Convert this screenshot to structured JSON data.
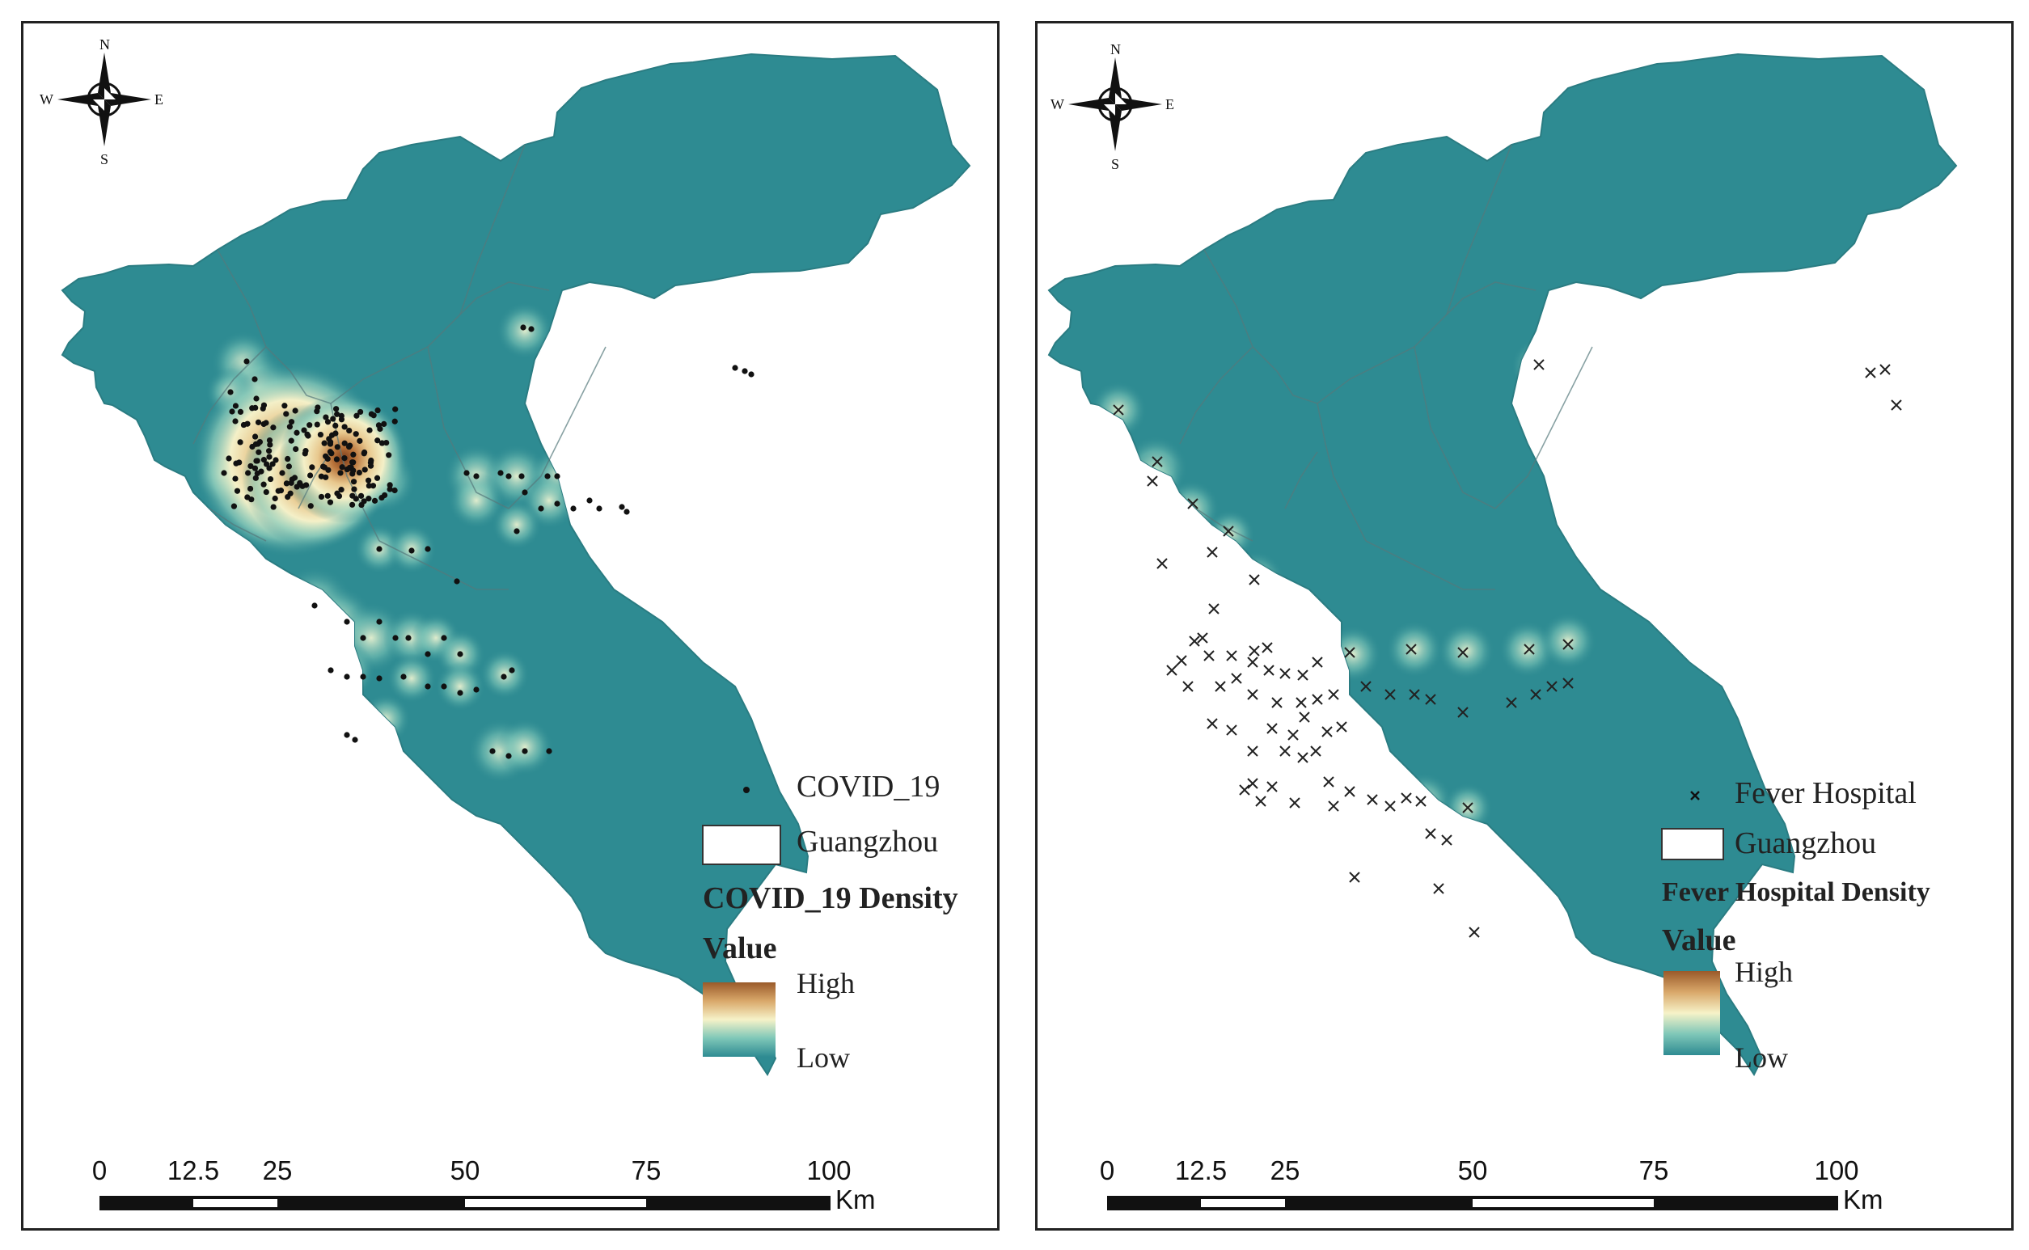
{
  "panels": [
    {
      "id": "left",
      "point_marker": "dot",
      "legend": {
        "point_label": "COVID_19",
        "boundary_label": "Guangzhou",
        "density_title": "COVID_19 Density",
        "value_label": "Value",
        "high_label": "High",
        "low_label": "Low"
      },
      "scale_bar": {
        "ticks": [
          "0",
          "12.5",
          "25",
          "50",
          "75",
          "100"
        ],
        "unit": "Km"
      },
      "compass": {
        "n": "N",
        "s": "S",
        "e": "E",
        "w": "W"
      }
    },
    {
      "id": "right",
      "point_marker": "cross",
      "legend": {
        "point_label": "Fever Hospital",
        "boundary_label": "Guangzhou",
        "density_title": "Fever Hospital Density",
        "value_label": "Value",
        "high_label": "High",
        "low_label": "Low"
      },
      "scale_bar": {
        "ticks": [
          "0",
          "12.5",
          "25",
          "50",
          "75",
          "100"
        ],
        "unit": "Km"
      },
      "compass": {
        "n": "N",
        "s": "S",
        "e": "E",
        "w": "W"
      }
    }
  ],
  "colors": {
    "base_fill": "#2e8b92",
    "glow": "#7fc7b8",
    "high": "#b8733a",
    "mid": "#f4f0c8",
    "low": "#2e8b92",
    "district_line": "#5a7d80",
    "marker": "#111111"
  }
}
